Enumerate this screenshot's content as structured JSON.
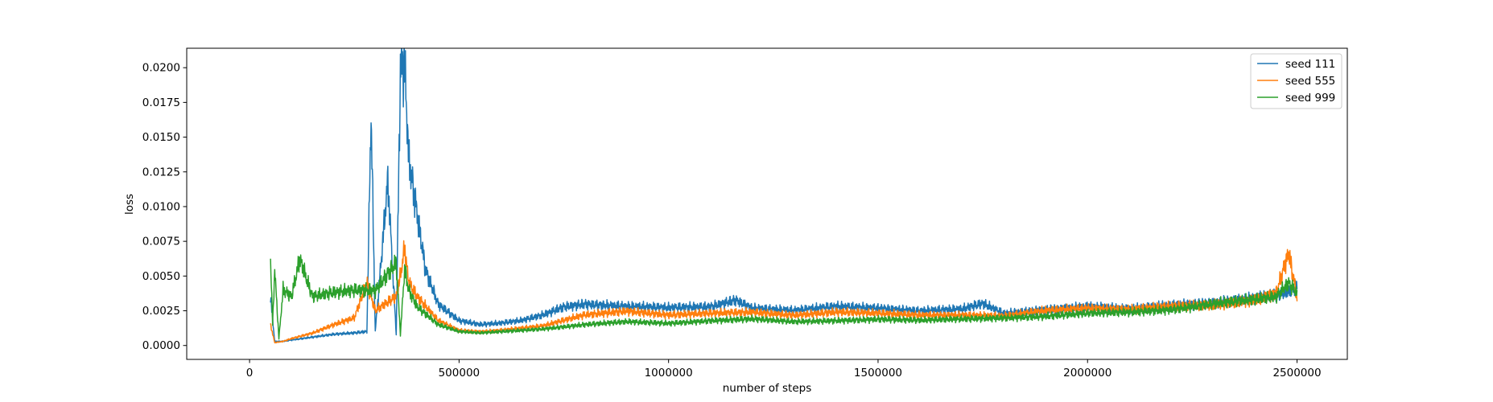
{
  "chart_data": {
    "type": "line",
    "title": "",
    "xlabel": "number of steps",
    "ylabel": "loss",
    "xlim": [
      -150000,
      2620000
    ],
    "ylim": [
      -0.001,
      0.0214
    ],
    "xticks": [
      0,
      500000,
      1000000,
      1500000,
      2000000,
      2500000
    ],
    "xtick_labels": [
      "0",
      "500000",
      "1000000",
      "1500000",
      "2000000",
      "2500000"
    ],
    "yticks": [
      0.0,
      0.0025,
      0.005,
      0.0075,
      0.01,
      0.0125,
      0.015,
      0.0175,
      0.02
    ],
    "ytick_labels": [
      "0.0000",
      "0.0025",
      "0.0050",
      "0.0075",
      "0.0100",
      "0.0125",
      "0.0150",
      "0.0175",
      "0.0200"
    ],
    "grid": false,
    "legend_position": "top-right",
    "series": [
      {
        "name": "seed 111",
        "color": "#1f77b4",
        "x": [
          50000,
          60000,
          80000,
          100000,
          150000,
          200000,
          250000,
          280000,
          290000,
          300000,
          330000,
          350000,
          360000,
          370000,
          380000,
          400000,
          420000,
          450000,
          500000,
          550000,
          600000,
          650000,
          700000,
          750000,
          800000,
          900000,
          1000000,
          1100000,
          1160000,
          1200000,
          1300000,
          1400000,
          1500000,
          1600000,
          1700000,
          1750000,
          1800000,
          1900000,
          2000000,
          2100000,
          2200000,
          2300000,
          2400000,
          2450000,
          2480000,
          2500000
        ],
        "y": [
          0.0035,
          0.0003,
          0.0003,
          0.0004,
          0.0006,
          0.0008,
          0.0009,
          0.001,
          0.0168,
          0.001,
          0.0119,
          0.0008,
          0.02,
          0.0204,
          0.0135,
          0.0095,
          0.0055,
          0.003,
          0.0018,
          0.0015,
          0.0016,
          0.0018,
          0.0022,
          0.0028,
          0.003,
          0.0028,
          0.0027,
          0.0028,
          0.0033,
          0.0027,
          0.0025,
          0.0028,
          0.0027,
          0.0025,
          0.0026,
          0.003,
          0.0023,
          0.0026,
          0.0028,
          0.0026,
          0.0029,
          0.0031,
          0.0034,
          0.0036,
          0.0038,
          0.0042
        ]
      },
      {
        "name": "seed 555",
        "color": "#ff7f0e",
        "x": [
          50000,
          60000,
          80000,
          100000,
          150000,
          200000,
          250000,
          280000,
          300000,
          350000,
          360000,
          370000,
          380000,
          400000,
          450000,
          500000,
          550000,
          600000,
          700000,
          800000,
          900000,
          1000000,
          1100000,
          1200000,
          1300000,
          1400000,
          1500000,
          1600000,
          1700000,
          1800000,
          1900000,
          2000000,
          2100000,
          2200000,
          2300000,
          2400000,
          2450000,
          2480000,
          2500000
        ],
        "y": [
          0.0015,
          0.0002,
          0.0003,
          0.0005,
          0.0009,
          0.0015,
          0.002,
          0.0045,
          0.0025,
          0.0035,
          0.005,
          0.007,
          0.0045,
          0.0035,
          0.0018,
          0.0011,
          0.001,
          0.0011,
          0.0014,
          0.0022,
          0.0025,
          0.0022,
          0.0023,
          0.0024,
          0.0022,
          0.0024,
          0.0023,
          0.0022,
          0.0022,
          0.0021,
          0.0025,
          0.0027,
          0.0026,
          0.0028,
          0.0029,
          0.0033,
          0.0038,
          0.0067,
          0.0035
        ]
      },
      {
        "name": "seed 999",
        "color": "#2ca02c",
        "x": [
          50000,
          55000,
          60000,
          70000,
          80000,
          100000,
          120000,
          150000,
          200000,
          250000,
          300000,
          350000,
          360000,
          370000,
          380000,
          400000,
          450000,
          500000,
          550000,
          600000,
          700000,
          800000,
          900000,
          1000000,
          1100000,
          1200000,
          1300000,
          1400000,
          1500000,
          1600000,
          1700000,
          1800000,
          1900000,
          2000000,
          2100000,
          2200000,
          2300000,
          2400000,
          2450000,
          2480000,
          2500000
        ],
        "y": [
          0.0063,
          0.0015,
          0.0055,
          0.0005,
          0.004,
          0.0035,
          0.0062,
          0.0035,
          0.0038,
          0.004,
          0.004,
          0.006,
          0.0008,
          0.0055,
          0.004,
          0.0028,
          0.0015,
          0.001,
          0.0009,
          0.001,
          0.0012,
          0.0015,
          0.0017,
          0.0016,
          0.0018,
          0.0019,
          0.0017,
          0.0018,
          0.0019,
          0.0018,
          0.0019,
          0.002,
          0.0021,
          0.0023,
          0.0024,
          0.0026,
          0.003,
          0.0033,
          0.0035,
          0.0045,
          0.0038
        ]
      }
    ]
  }
}
